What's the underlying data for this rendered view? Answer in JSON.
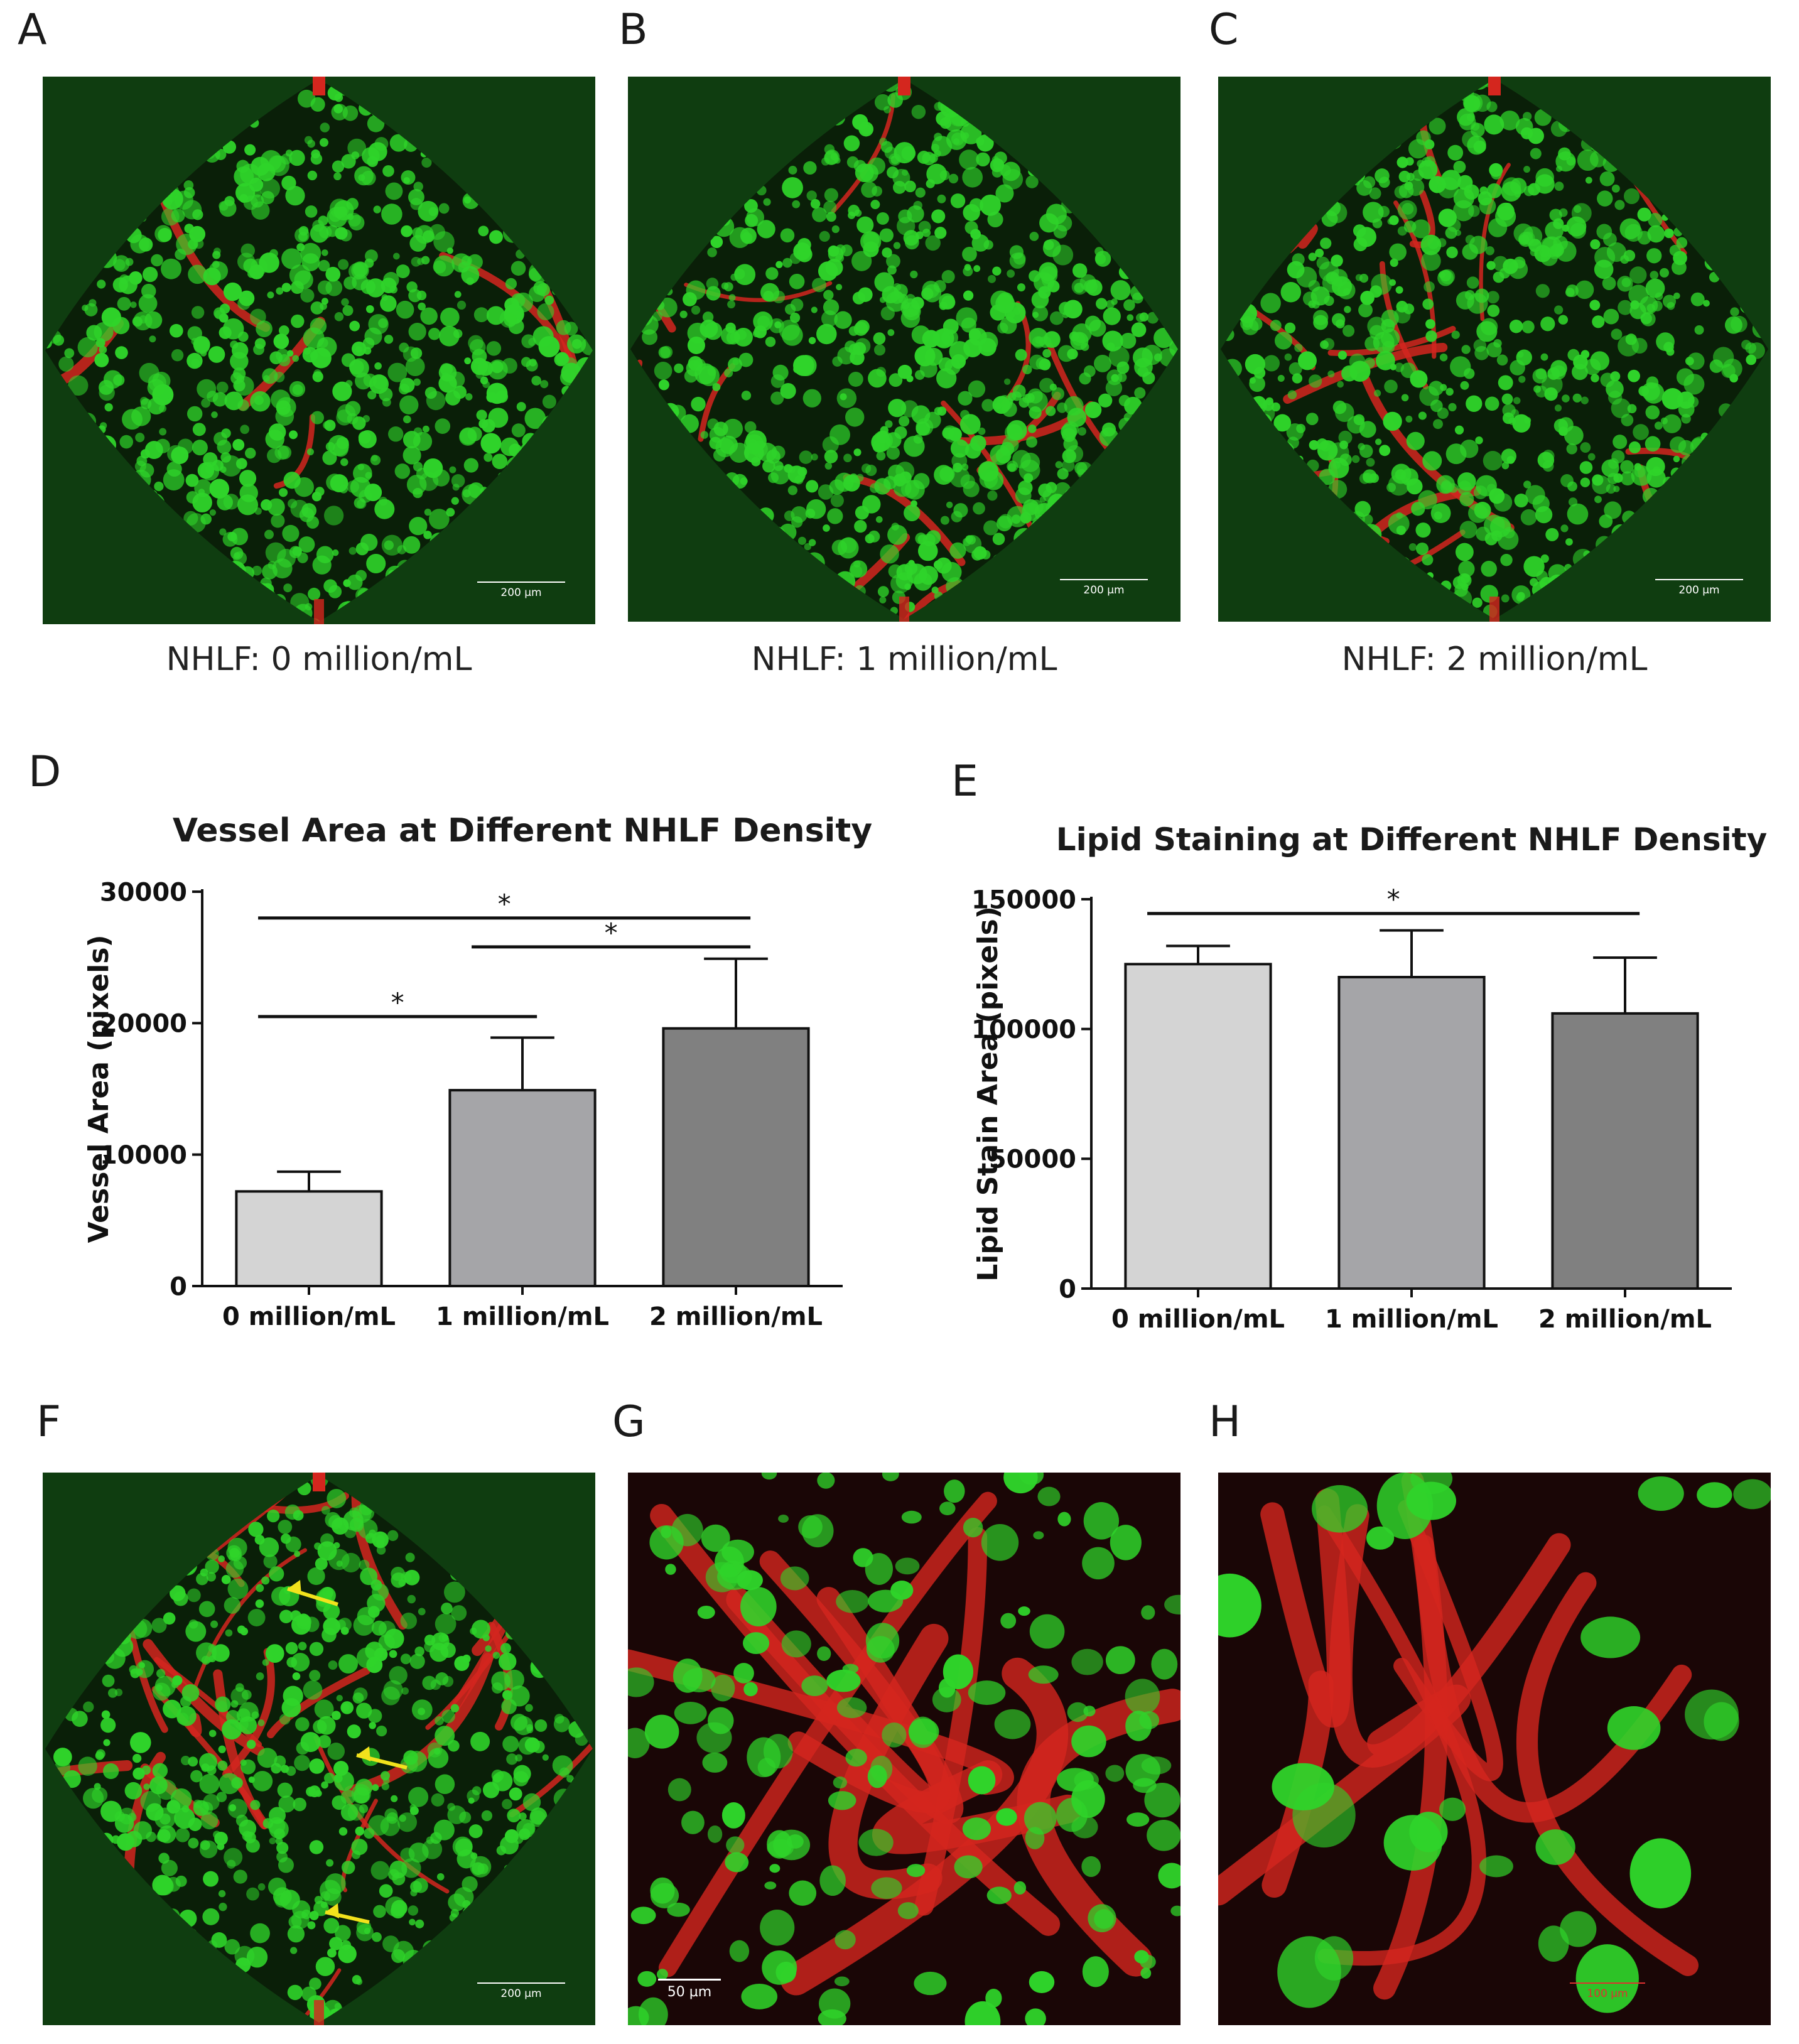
{
  "panel_labels": [
    "A",
    "B",
    "C",
    "D",
    "E",
    "F",
    "G",
    "H"
  ],
  "captions": {
    "a": "NHLF: 0 million/mL",
    "b": "NHLF: 1 million/mL",
    "c": "NHLF: 2 million/mL"
  },
  "scale_bars": {
    "a": "200 µm",
    "b": "200 µm",
    "c": "200 µm",
    "f": "200 µm",
    "g": "50 µm",
    "h": "100 µm"
  },
  "colors": {
    "cells_green": "#2fd42a",
    "vessel_red": "#d4261e",
    "background_green": "#0f3d10",
    "background_dark": "#1a0606",
    "arrow_yellow": "#f2e21c",
    "bar_light": "#d4d4d4",
    "bar_mid": "#a5a5a8",
    "bar_dark": "#808080"
  },
  "chart_data": [
    {
      "type": "bar",
      "title": "Vessel Area at Different NHLF Density",
      "xlabel": "",
      "ylabel": "Vessel Area (pixels)",
      "categories": [
        "0 million/mL",
        "1 million/mL",
        "2 million/mL"
      ],
      "values": [
        7200,
        14900,
        19600
      ],
      "errors": [
        1500,
        4000,
        5300
      ],
      "ylim": [
        0,
        30000
      ],
      "yticks": [
        0,
        10000,
        20000,
        30000
      ],
      "ytick_labels": [
        "0",
        "10000",
        "20000",
        "30000"
      ],
      "significance": [
        {
          "from": 0,
          "to": 2,
          "y": 28000,
          "label": "*"
        },
        {
          "from": 1,
          "to": 2,
          "y": 25800,
          "label": "*"
        },
        {
          "from": 0,
          "to": 1,
          "y": 20500,
          "label": "*"
        }
      ],
      "grid": false,
      "legend": "none"
    },
    {
      "type": "bar",
      "title": "Lipid Staining at Different NHLF Density",
      "xlabel": "",
      "ylabel": "Lipid Stain Area (pixels)",
      "categories": [
        "0 million/mL",
        "1 million/mL",
        "2 million/mL"
      ],
      "values": [
        125000,
        120000,
        106000
      ],
      "errors": [
        7000,
        18000,
        21500
      ],
      "ylim": [
        0,
        150000
      ],
      "yticks": [
        0,
        50000,
        100000,
        150000
      ],
      "ytick_labels": [
        "0",
        "50000",
        "100000",
        "150000"
      ],
      "significance": [
        {
          "from": 0,
          "to": 2,
          "y": 144500,
          "label": "*"
        }
      ],
      "grid": false,
      "legend": "none"
    }
  ]
}
